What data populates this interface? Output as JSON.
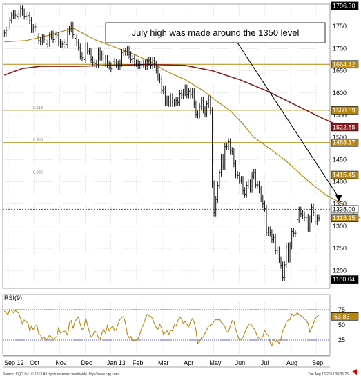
{
  "chart_data": [
    {
      "type": "line",
      "subtype": "ohlc-bar-daily",
      "title": "",
      "ylim": [
        1160,
        1800
      ],
      "y_ticks": [
        1200,
        1250,
        1300,
        1350,
        1400,
        1450,
        1500,
        1550,
        1600,
        1650,
        1700,
        1750
      ],
      "months": [
        "Sep 12",
        "Oct",
        "Nov",
        "Dec",
        "Jan 13",
        "Feb",
        "Mar",
        "Apr",
        "May",
        "Jun",
        "Jul",
        "Aug",
        "Sep"
      ],
      "grid": true,
      "annotation": "July high was made around the 1350 level",
      "price_series": {
        "name": "",
        "color": "#000000",
        "values": [
          1735,
          1741,
          1751,
          1764,
          1775,
          1778,
          1775,
          1773,
          1778,
          1790,
          1782,
          1773,
          1772,
          1774,
          1763,
          1743,
          1747,
          1749,
          1727,
          1718,
          1716,
          1725,
          1721,
          1710,
          1712,
          1728,
          1732,
          1720,
          1731,
          1730,
          1713,
          1710,
          1710,
          1713,
          1709,
          1738,
          1744,
          1752,
          1731,
          1723,
          1713,
          1703,
          1683,
          1679,
          1675,
          1706,
          1694,
          1693,
          1675,
          1668,
          1666,
          1664,
          1695,
          1681,
          1687,
          1667,
          1677,
          1665,
          1661,
          1655,
          1671,
          1668,
          1665,
          1659,
          1667,
          1691,
          1694,
          1692,
          1697,
          1686,
          1675,
          1678,
          1667,
          1667,
          1662,
          1664,
          1664,
          1667,
          1660,
          1670,
          1674,
          1662,
          1673,
          1665,
          1652,
          1636,
          1631,
          1605,
          1609,
          1579,
          1586,
          1577,
          1591,
          1577,
          1578,
          1583,
          1579,
          1599,
          1595,
          1601,
          1611,
          1596,
          1604,
          1596,
          1604,
          1575,
          1552,
          1551,
          1570,
          1584,
          1562,
          1553,
          1575,
          1586,
          1560,
          1395,
          1330,
          1360,
          1392,
          1420,
          1455,
          1435,
          1479,
          1480,
          1490,
          1470,
          1468,
          1441,
          1416,
          1414,
          1403,
          1405,
          1380,
          1372,
          1392,
          1397,
          1383,
          1413,
          1421,
          1393,
          1393,
          1382,
          1362,
          1350,
          1340,
          1286,
          1291,
          1285,
          1270,
          1275,
          1245,
          1246,
          1224,
          1212,
          1184,
          1213,
          1255,
          1226,
          1256,
          1288,
          1284,
          1284,
          1315,
          1336,
          1328,
          1325,
          1320,
          1320,
          1294,
          1316,
          1342,
          1331,
          1311,
          1319,
          1318
        ]
      },
      "ma_short": {
        "name": "",
        "color": "#b8860b",
        "points": [
          [
            0,
            1715
          ],
          [
            12,
            1718
          ],
          [
            25,
            1730
          ],
          [
            38,
            1746
          ],
          [
            50,
            1720
          ],
          [
            60,
            1705
          ],
          [
            70,
            1690
          ],
          [
            80,
            1672
          ],
          [
            90,
            1648
          ],
          [
            100,
            1630
          ],
          [
            110,
            1605
          ],
          [
            118,
            1580
          ],
          [
            125,
            1560
          ],
          [
            132,
            1530
          ],
          [
            138,
            1500
          ],
          [
            145,
            1480
          ],
          [
            155,
            1450
          ],
          [
            163,
            1420
          ],
          [
            170,
            1395
          ],
          [
            178,
            1370
          ],
          [
            185,
            1355
          ],
          [
            190,
            1340
          ],
          [
            194,
            1325
          ],
          [
            197,
            1318
          ]
        ]
      },
      "ma_long": {
        "name": "",
        "color": "#8b1a1a",
        "points": [
          [
            0,
            1640
          ],
          [
            10,
            1655
          ],
          [
            20,
            1660
          ],
          [
            40,
            1660
          ],
          [
            60,
            1662
          ],
          [
            80,
            1664
          ],
          [
            100,
            1662
          ],
          [
            115,
            1650
          ],
          [
            130,
            1630
          ],
          [
            145,
            1605
          ],
          [
            160,
            1575
          ],
          [
            175,
            1545
          ],
          [
            187,
            1523
          ]
        ]
      },
      "horizontal_levels": [
        {
          "label": "1664.42",
          "value": 1664.42,
          "color": "#b8860b",
          "fib": ""
        },
        {
          "label": "1560.89",
          "value": 1560.89,
          "color": "#b8860b",
          "fib": "0.618"
        },
        {
          "label": "1488.17",
          "value": 1488.17,
          "color": "#b8860b",
          "fib": "0.500"
        },
        {
          "label": "1415.45",
          "value": 1415.45,
          "color": "#b8860b",
          "fib": "0.382"
        },
        {
          "label": "1338.00",
          "value": 1338.0,
          "color": "#555555",
          "fib": ""
        }
      ],
      "price_tags": [
        {
          "label": "1796.30",
          "value": 1796.3,
          "bg": "#000000",
          "fg": "#ffffff"
        },
        {
          "label": "1664.42",
          "value": 1664.42,
          "bg": "#b8860b",
          "fg": "#ffffff"
        },
        {
          "label": "1560.89",
          "value": 1560.89,
          "bg": "#b8860b",
          "fg": "#ffffff"
        },
        {
          "label": "1522.85",
          "value": 1522.85,
          "bg": "#8b1a1a",
          "fg": "#ffffff"
        },
        {
          "label": "1488.17",
          "value": 1488.17,
          "bg": "#b8860b",
          "fg": "#ffffff"
        },
        {
          "label": "1415.45",
          "value": 1415.45,
          "bg": "#b8860b",
          "fg": "#ffffff"
        },
        {
          "label": "1338.00",
          "value": 1338.0,
          "bg": "#ffffff",
          "fg": "#000000"
        },
        {
          "label": "1318.15",
          "value": 1318.15,
          "bg": "#b8860b",
          "fg": "#ffffff"
        },
        {
          "label": "1180.04",
          "value": 1180.04,
          "bg": "#000000",
          "fg": "#ffffff"
        }
      ]
    },
    {
      "type": "line",
      "title": "RSI(9)",
      "ylim": [
        0,
        100
      ],
      "y_ticks": [
        25,
        50,
        75
      ],
      "ref_lines": [
        {
          "value": 75,
          "color": "#cc0000"
        },
        {
          "value": 25,
          "color": "#3333aa"
        }
      ],
      "series": [
        {
          "name": "",
          "color": "#b8860b",
          "values": [
            73,
            70,
            67,
            75,
            74,
            70,
            74,
            71,
            69,
            60,
            52,
            58,
            55,
            54,
            40,
            48,
            42,
            48,
            50,
            35,
            33,
            27,
            30,
            25,
            28,
            33,
            30,
            26,
            29,
            31,
            45,
            37,
            38,
            40,
            39,
            33,
            54,
            57,
            44,
            55,
            60,
            63,
            51,
            42,
            45,
            61,
            50,
            39,
            30,
            33,
            40,
            38,
            29,
            26,
            36,
            43,
            36,
            49,
            40,
            45,
            48,
            40,
            43,
            52,
            59,
            62,
            64,
            53,
            35,
            29,
            31,
            23,
            24,
            25,
            28,
            35,
            45,
            51,
            60,
            67,
            65,
            64,
            60,
            52,
            46,
            43,
            51,
            45,
            34,
            38,
            40,
            34,
            41,
            40,
            50,
            48,
            57,
            63,
            60,
            52,
            56,
            51,
            47,
            55,
            60,
            55,
            41,
            20,
            22,
            29,
            30,
            36,
            42,
            48,
            50,
            51,
            56,
            59,
            58,
            60,
            54,
            52,
            47,
            38,
            39,
            48,
            57,
            56,
            43,
            33,
            25,
            26,
            30,
            37,
            44,
            50,
            52,
            49,
            44,
            39,
            30,
            28,
            26,
            31,
            41,
            35,
            33,
            21,
            16,
            26,
            22,
            25,
            19,
            27,
            40,
            45,
            55,
            58,
            59,
            68,
            65,
            66,
            70,
            67,
            65,
            63,
            60,
            57,
            53,
            38,
            45,
            52,
            60,
            64,
            66
          ]
        }
      ],
      "value_tag": {
        "label": "63.86",
        "value": 63.86,
        "bg": "#b8860b",
        "fg": "#ffffff"
      }
    }
  ],
  "footer": {
    "source": "Source: CQG Inc. © 2013 All rights reserved worldwide. http://www.cqg.com",
    "timestamp": "Tue Aug 13 2013 08:35:25"
  }
}
